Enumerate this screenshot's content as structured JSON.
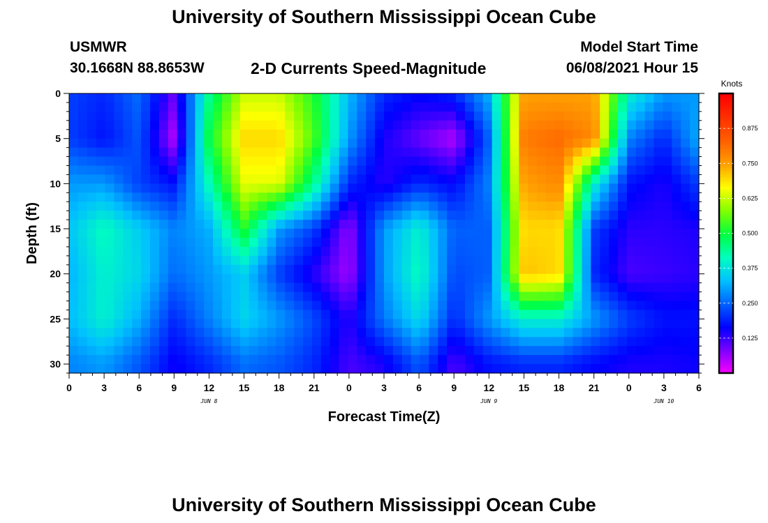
{
  "page": {
    "title_top": "University of Southern Mississippi Ocean Cube",
    "title_bottom": "University of Southern Mississippi Ocean Cube",
    "station_name": "USMWR",
    "station_coords": "30.1668N  88.8653W",
    "subtitle": "2-D Currents Speed-Magnitude",
    "model_start_label": "Model Start Time",
    "model_start_value": "06/08/2021 Hour 15"
  },
  "colors": {
    "colormap": [
      "#ff00ff",
      "#8000ff",
      "#0000ff",
      "#0060ff",
      "#00c0ff",
      "#00ffc0",
      "#00ff40",
      "#80ff00",
      "#ffff00",
      "#ffa000",
      "#ff6000",
      "#ff3000",
      "#ff0000"
    ],
    "colorbar_border": "#000000"
  },
  "chart_data": {
    "type": "heatmap",
    "title": "2-D Currents Speed-Magnitude",
    "xlabel": "Forecast Time(Z)",
    "ylabel": "Depth (ft)",
    "x_tick_labels": [
      "0",
      "3",
      "6",
      "9",
      "12",
      "15",
      "18",
      "21",
      "0",
      "3",
      "6",
      "9",
      "12",
      "15",
      "18",
      "21",
      "0",
      "3",
      "6"
    ],
    "x_forecast_hours": [
      0,
      3,
      6,
      9,
      12,
      15,
      18,
      21,
      24,
      27,
      30,
      33,
      36,
      39,
      42,
      45,
      48,
      51,
      54
    ],
    "xlim": [
      0,
      54
    ],
    "date_labels": [
      {
        "text": "JUN 8",
        "hour": 12
      },
      {
        "text": "JUN 9",
        "hour": 36
      },
      {
        "text": "JUN 10",
        "hour": 51
      }
    ],
    "y_tick_labels": [
      "0",
      "5",
      "10",
      "15",
      "20",
      "25",
      "30"
    ],
    "y_depths": [
      0,
      5,
      10,
      15,
      20,
      25,
      30
    ],
    "ylim": [
      0,
      31
    ],
    "y_inverted": true,
    "colorbar": {
      "unit": "Knots",
      "tick_labels": [
        "0.125",
        "0.250",
        "0.375",
        "0.500",
        "0.625",
        "0.750",
        "0.875"
      ],
      "tick_values": [
        0.125,
        0.25,
        0.375,
        0.5,
        0.625,
        0.75,
        0.875
      ],
      "range": [
        0.0,
        1.0
      ]
    },
    "grid_hours": [
      0,
      3,
      6,
      9,
      12,
      15,
      18,
      21,
      24,
      27,
      30,
      33,
      36,
      39,
      42,
      45,
      48,
      51,
      54
    ],
    "grid_depths": [
      0,
      5,
      10,
      15,
      20,
      25,
      30
    ],
    "speed_knots": [
      [
        0.22,
        0.2,
        0.26,
        0.1,
        0.45,
        0.63,
        0.63,
        0.52,
        0.33,
        0.2,
        0.17,
        0.2,
        0.32,
        0.75,
        0.75,
        0.75,
        0.4,
        0.3,
        0.3
      ],
      [
        0.22,
        0.18,
        0.24,
        0.05,
        0.5,
        0.7,
        0.7,
        0.55,
        0.3,
        0.15,
        0.1,
        0.05,
        0.25,
        0.8,
        0.82,
        0.78,
        0.28,
        0.2,
        0.32
      ],
      [
        0.3,
        0.3,
        0.22,
        0.18,
        0.42,
        0.65,
        0.65,
        0.45,
        0.2,
        0.14,
        0.2,
        0.17,
        0.28,
        0.75,
        0.78,
        0.4,
        0.18,
        0.15,
        0.22
      ],
      [
        0.34,
        0.42,
        0.35,
        0.28,
        0.32,
        0.52,
        0.3,
        0.22,
        0.07,
        0.3,
        0.4,
        0.25,
        0.25,
        0.7,
        0.7,
        0.22,
        0.14,
        0.14,
        0.15
      ],
      [
        0.32,
        0.4,
        0.36,
        0.26,
        0.3,
        0.35,
        0.22,
        0.14,
        0.06,
        0.3,
        0.42,
        0.23,
        0.25,
        0.72,
        0.7,
        0.2,
        0.12,
        0.13,
        0.14
      ],
      [
        0.33,
        0.4,
        0.32,
        0.2,
        0.28,
        0.36,
        0.3,
        0.23,
        0.14,
        0.27,
        0.37,
        0.2,
        0.3,
        0.4,
        0.4,
        0.3,
        0.22,
        0.18,
        0.18
      ],
      [
        0.28,
        0.3,
        0.24,
        0.16,
        0.2,
        0.26,
        0.24,
        0.2,
        0.12,
        0.15,
        0.24,
        0.12,
        0.18,
        0.2,
        0.2,
        0.17,
        0.15,
        0.15,
        0.16
      ]
    ]
  }
}
